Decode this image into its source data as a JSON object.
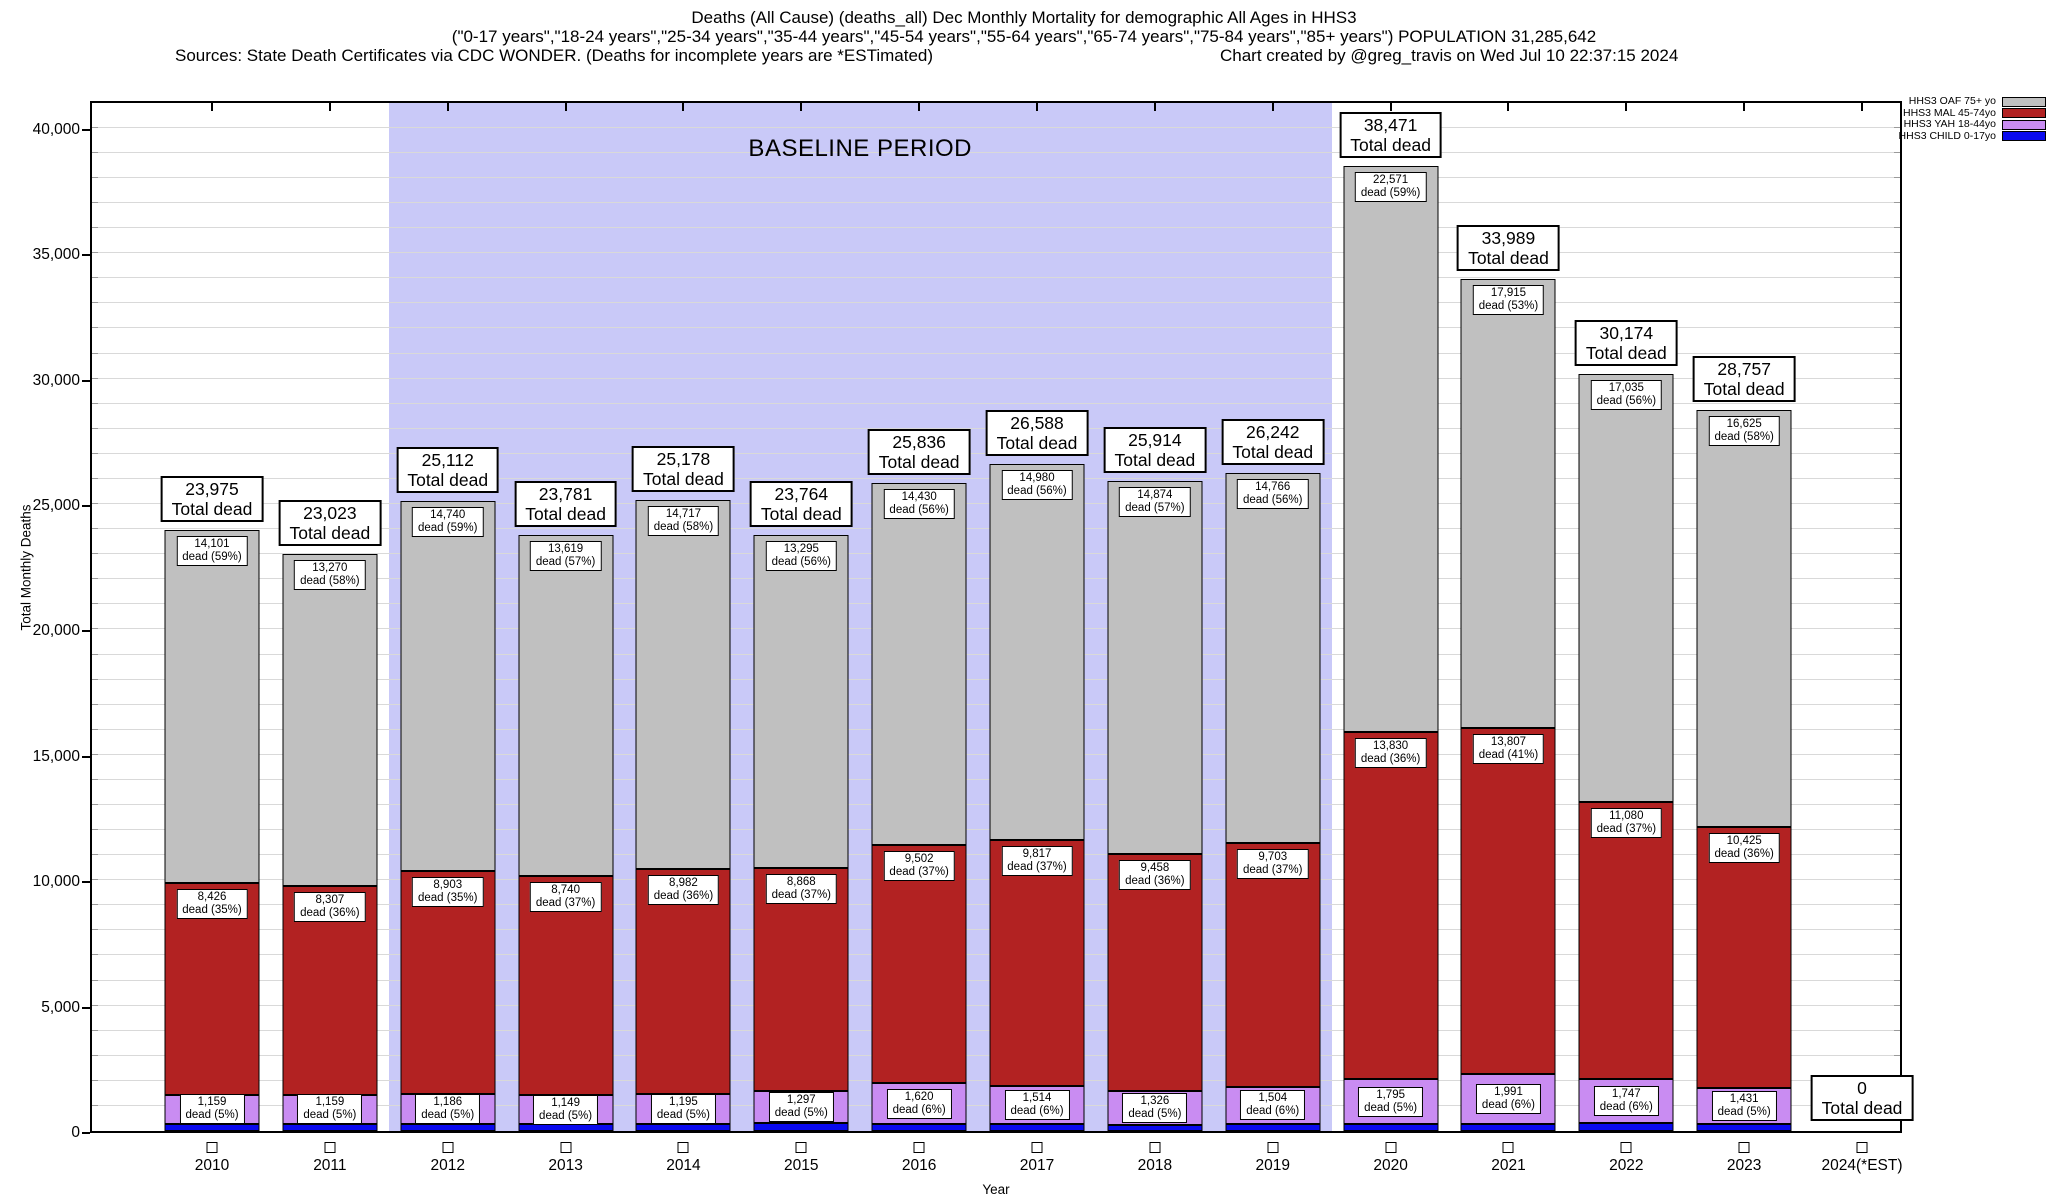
{
  "header": {
    "line1": "Deaths (All Cause) (deaths_all) Dec Monthly Mortality for demographic All Ages in HHS3",
    "line2": "(\"0-17 years\",\"18-24 years\",\"25-34 years\",\"35-44 years\",\"45-54 years\",\"55-64 years\",\"65-74 years\",\"75-84 years\",\"85+ years\") POPULATION 31,285,642",
    "line3_sources": "Sources: State Death Certificates via CDC WONDER. (Deaths for incomplete years are *ESTimated)",
    "line3_credit": "Chart created by @greg_travis on Wed Jul 10 22:37:15 2024"
  },
  "chart_data": {
    "type": "bar",
    "stacked": true,
    "xlabel": "Year",
    "ylabel": "Total Monthly Deaths",
    "ylim": [
      0,
      40000
    ],
    "y_axis_headroom_max": 41150,
    "ytick_step": 5000,
    "grid_step": 1000,
    "ytick_labels": [
      "0",
      "5,000",
      "10,000",
      "15,000",
      "20,000",
      "25,000",
      "30,000",
      "35,000",
      "40,000"
    ],
    "grid": true,
    "legend_position": "top-right-outside",
    "legend": [
      {
        "label": "HHS3 OAF 75+ yo",
        "color": "#c0c0c0",
        "key": "oaf"
      },
      {
        "label": "HHS3 MAL 45-74yo",
        "color": "#b22222",
        "key": "mal"
      },
      {
        "label": "HHS3 YAH 18-44yo",
        "color": "#c98cf2",
        "key": "yah"
      },
      {
        "label": "HHS3 CHILD 0-17yo",
        "color": "#0a0aee",
        "key": "child"
      }
    ],
    "baseline_region": {
      "label": "BASELINE PERIOD",
      "from_year": "2012",
      "to_year": "2019",
      "fill": "#c9c9f8"
    },
    "total_label_suffix": "Total dead",
    "segment_label_prefix": "dead",
    "categories": [
      "2010",
      "2011",
      "2012",
      "2013",
      "2014",
      "2015",
      "2016",
      "2017",
      "2018",
      "2019",
      "2020",
      "2021",
      "2022",
      "2023",
      "2024(*EST)"
    ],
    "bars": [
      {
        "year": "2010",
        "total": 23975,
        "total_text": "23,975",
        "oaf": {
          "value": 14101,
          "text": "14,101",
          "pct": "59%"
        },
        "mal": {
          "value": 8426,
          "text": "8,426",
          "pct": "35%"
        },
        "yah": {
          "value": 1159,
          "text": "1,159",
          "pct": "5%"
        }
      },
      {
        "year": "2011",
        "total": 23023,
        "total_text": "23,023",
        "oaf": {
          "value": 13270,
          "text": "13,270",
          "pct": "58%"
        },
        "mal": {
          "value": 8307,
          "text": "8,307",
          "pct": "36%"
        },
        "yah": {
          "value": 1159,
          "text": "1,159",
          "pct": "5%"
        }
      },
      {
        "year": "2012",
        "total": 25112,
        "total_text": "25,112",
        "oaf": {
          "value": 14740,
          "text": "14,740",
          "pct": "59%"
        },
        "mal": {
          "value": 8903,
          "text": "8,903",
          "pct": "35%"
        },
        "yah": {
          "value": 1186,
          "text": "1,186",
          "pct": "5%"
        }
      },
      {
        "year": "2013",
        "total": 23781,
        "total_text": "23,781",
        "oaf": {
          "value": 13619,
          "text": "13,619",
          "pct": "57%"
        },
        "mal": {
          "value": 8740,
          "text": "8,740",
          "pct": "37%"
        },
        "yah": {
          "value": 1149,
          "text": "1,149",
          "pct": "5%"
        }
      },
      {
        "year": "2014",
        "total": 25178,
        "total_text": "25,178",
        "oaf": {
          "value": 14717,
          "text": "14,717",
          "pct": "58%"
        },
        "mal": {
          "value": 8982,
          "text": "8,982",
          "pct": "36%"
        },
        "yah": {
          "value": 1195,
          "text": "1,195",
          "pct": "5%"
        }
      },
      {
        "year": "2015",
        "total": 23764,
        "total_text": "23,764",
        "oaf": {
          "value": 13295,
          "text": "13,295",
          "pct": "56%"
        },
        "mal": {
          "value": 8868,
          "text": "8,868",
          "pct": "37%"
        },
        "yah": {
          "value": 1297,
          "text": "1,297",
          "pct": "5%"
        }
      },
      {
        "year": "2016",
        "total": 25836,
        "total_text": "25,836",
        "oaf": {
          "value": 14430,
          "text": "14,430",
          "pct": "56%"
        },
        "mal": {
          "value": 9502,
          "text": "9,502",
          "pct": "37%"
        },
        "yah": {
          "value": 1620,
          "text": "1,620",
          "pct": "6%"
        }
      },
      {
        "year": "2017",
        "total": 26588,
        "total_text": "26,588",
        "oaf": {
          "value": 14980,
          "text": "14,980",
          "pct": "56%"
        },
        "mal": {
          "value": 9817,
          "text": "9,817",
          "pct": "37%"
        },
        "yah": {
          "value": 1514,
          "text": "1,514",
          "pct": "6%"
        }
      },
      {
        "year": "2018",
        "total": 25914,
        "total_text": "25,914",
        "oaf": {
          "value": 14874,
          "text": "14,874",
          "pct": "57%"
        },
        "mal": {
          "value": 9458,
          "text": "9,458",
          "pct": "36%"
        },
        "yah": {
          "value": 1326,
          "text": "1,326",
          "pct": "5%"
        }
      },
      {
        "year": "2019",
        "total": 26242,
        "total_text": "26,242",
        "oaf": {
          "value": 14766,
          "text": "14,766",
          "pct": "56%"
        },
        "mal": {
          "value": 9703,
          "text": "9,703",
          "pct": "37%"
        },
        "yah": {
          "value": 1504,
          "text": "1,504",
          "pct": "6%"
        }
      },
      {
        "year": "2020",
        "total": 38471,
        "total_text": "38,471",
        "oaf": {
          "value": 22571,
          "text": "22,571",
          "pct": "59%"
        },
        "mal": {
          "value": 13830,
          "text": "13,830",
          "pct": "36%"
        },
        "yah": {
          "value": 1795,
          "text": "1,795",
          "pct": "5%"
        }
      },
      {
        "year": "2021",
        "total": 33989,
        "total_text": "33,989",
        "oaf": {
          "value": 17915,
          "text": "17,915",
          "pct": "53%"
        },
        "mal": {
          "value": 13807,
          "text": "13,807",
          "pct": "41%"
        },
        "yah": {
          "value": 1991,
          "text": "1,991",
          "pct": "6%"
        }
      },
      {
        "year": "2022",
        "total": 30174,
        "total_text": "30,174",
        "oaf": {
          "value": 17035,
          "text": "17,035",
          "pct": "56%"
        },
        "mal": {
          "value": 11080,
          "text": "11,080",
          "pct": "37%"
        },
        "yah": {
          "value": 1747,
          "text": "1,747",
          "pct": "6%"
        }
      },
      {
        "year": "2023",
        "total": 28757,
        "total_text": "28,757",
        "oaf": {
          "value": 16625,
          "text": "16,625",
          "pct": "58%"
        },
        "mal": {
          "value": 10425,
          "text": "10,425",
          "pct": "36%"
        },
        "yah": {
          "value": 1431,
          "text": "1,431",
          "pct": "5%"
        }
      },
      {
        "year": "2024(*EST)",
        "total": 0,
        "total_text": "0",
        "oaf": null,
        "mal": null,
        "yah": null
      }
    ]
  }
}
